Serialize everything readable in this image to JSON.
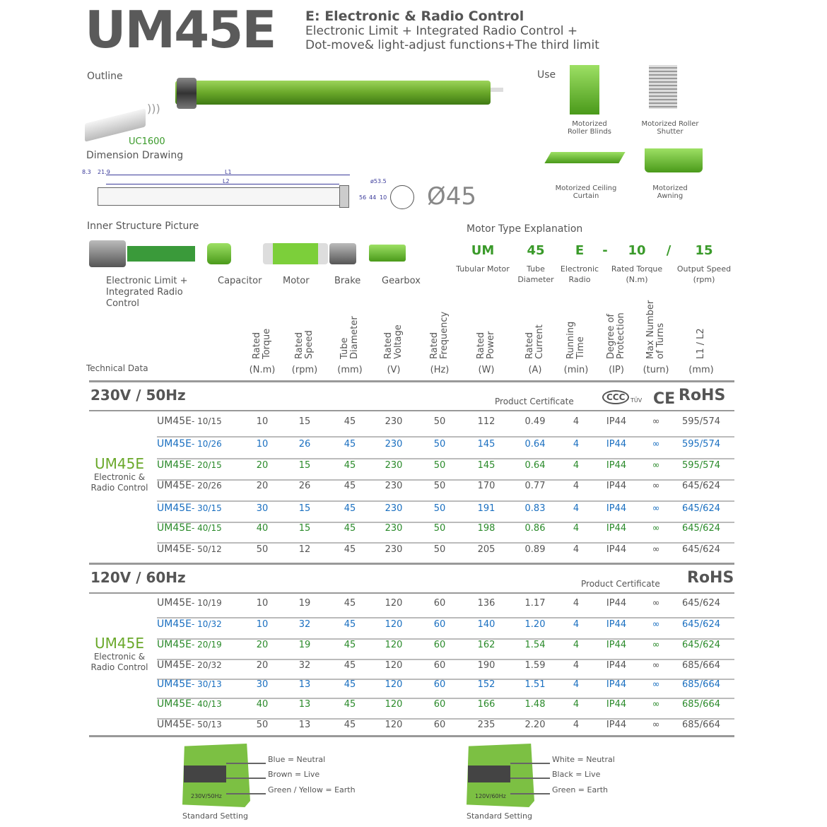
{
  "title": "UM45E",
  "subtitle": {
    "line1": "E: Electronic & Radio Control",
    "line2": "Electronic Limit + Integrated Radio Control +",
    "line3": "Dot-move& light-adjust functions+The third limit"
  },
  "outline": {
    "label": "Outline",
    "remote": "UC1600"
  },
  "use": {
    "label": "Use",
    "items": [
      "Motorized Roller Blinds",
      "Motorized Roller Shutter",
      "Motorized Ceiling Curtain",
      "Motorized Awning"
    ]
  },
  "dimension": {
    "label": "Dimension Drawing",
    "d1": "8.3",
    "d2": "21.9",
    "l1": "L1",
    "l2": "L2",
    "phi535": "ø53.5",
    "d56": "56",
    "d44": "44",
    "d10": "10",
    "diameter": "Ø45"
  },
  "inner": {
    "label": "Inner Structure Picture",
    "parts": [
      "Electronic Limit + Integrated Radio Control",
      "Capacitor",
      "Motor",
      "Brake",
      "Gearbox"
    ]
  },
  "motor_type": {
    "label": "Motor Type Explanation",
    "codes": [
      {
        "code": "UM",
        "desc": "Tubular Motor"
      },
      {
        "code": "45",
        "desc": "Tube Diameter"
      },
      {
        "code": "E",
        "desc": "Electronic Radio"
      },
      {
        "code": "-",
        "desc": ""
      },
      {
        "code": "10",
        "desc": "Rated Torque (N.m)"
      },
      {
        "code": "/",
        "desc": ""
      },
      {
        "code": "15",
        "desc": "Output Speed (rpm)"
      }
    ]
  },
  "tech": {
    "label": "Technical Data",
    "columns": [
      {
        "name": "Rated Torque",
        "unit": "(N.m)"
      },
      {
        "name": "Rated Speed",
        "unit": "(rpm)"
      },
      {
        "name": "Tube Diameter",
        "unit": "(mm)"
      },
      {
        "name": "Rated Voltage",
        "unit": "(V)"
      },
      {
        "name": "Rated Frequency",
        "unit": "(Hz)"
      },
      {
        "name": "Rated Power",
        "unit": "(W)"
      },
      {
        "name": "Rated Current",
        "unit": "(A)"
      },
      {
        "name": "Running Time",
        "unit": "(min)"
      },
      {
        "name": "Degree of Protection",
        "unit": "(IP)"
      },
      {
        "name": "Max Number of Turns",
        "unit": "(turn)"
      },
      {
        "name": "L1 / L2",
        "unit": "(mm)"
      }
    ]
  },
  "colors": {
    "grey": "#555555",
    "blue": "#1a6fc0",
    "green": "#2a8a2a",
    "accent": "#6aa82a"
  },
  "sections": [
    {
      "title": "230V / 50Hz",
      "cert_label": "Product Certificate",
      "certs": [
        "CCC",
        "TÜV",
        "CE",
        "RoHS"
      ],
      "group": "UM45E",
      "group_label": "Electronic & Radio Control",
      "rows": [
        {
          "model": "UM45E",
          "suffix": "- 10/15",
          "color": "grey",
          "v": [
            "10",
            "15",
            "45",
            "230",
            "50",
            "112",
            "0.49",
            "4",
            "IP44",
            "∞",
            "595/574"
          ]
        },
        {
          "model": "UM45E",
          "suffix": "- 10/26",
          "color": "blue",
          "v": [
            "10",
            "26",
            "45",
            "230",
            "50",
            "145",
            "0.64",
            "4",
            "IP44",
            "∞",
            "595/574"
          ]
        },
        {
          "model": "UM45E",
          "suffix": "- 20/15",
          "color": "green",
          "v": [
            "20",
            "15",
            "45",
            "230",
            "50",
            "145",
            "0.64",
            "4",
            "IP44",
            "∞",
            "595/574"
          ]
        },
        {
          "model": "UM45E",
          "suffix": "- 20/26",
          "color": "grey",
          "v": [
            "20",
            "26",
            "45",
            "230",
            "50",
            "170",
            "0.77",
            "4",
            "IP44",
            "∞",
            "645/624"
          ]
        },
        {
          "model": "UM45E",
          "suffix": "- 30/15",
          "color": "blue",
          "v": [
            "30",
            "15",
            "45",
            "230",
            "50",
            "191",
            "0.83",
            "4",
            "IP44",
            "∞",
            "645/624"
          ]
        },
        {
          "model": "UM45E",
          "suffix": "- 40/15",
          "color": "green",
          "v": [
            "40",
            "15",
            "45",
            "230",
            "50",
            "198",
            "0.86",
            "4",
            "IP44",
            "∞",
            "645/624"
          ]
        },
        {
          "model": "UM45E",
          "suffix": "- 50/12",
          "color": "grey",
          "v": [
            "50",
            "12",
            "45",
            "230",
            "50",
            "205",
            "0.89",
            "4",
            "IP44",
            "∞",
            "645/624"
          ]
        }
      ]
    },
    {
      "title": "120V / 60Hz",
      "cert_label": "Product Certificate",
      "certs": [
        "RoHS"
      ],
      "group": "UM45E",
      "group_label": "Electronic & Radio Control",
      "rows": [
        {
          "model": "UM45E",
          "suffix": "- 10/19",
          "color": "grey",
          "v": [
            "10",
            "19",
            "45",
            "120",
            "60",
            "136",
            "1.17",
            "4",
            "IP44",
            "∞",
            "645/624"
          ]
        },
        {
          "model": "UM45E",
          "suffix": "- 10/32",
          "color": "blue",
          "v": [
            "10",
            "32",
            "45",
            "120",
            "60",
            "140",
            "1.20",
            "4",
            "IP44",
            "∞",
            "645/624"
          ]
        },
        {
          "model": "UM45E",
          "suffix": "- 20/19",
          "color": "green",
          "v": [
            "20",
            "19",
            "45",
            "120",
            "60",
            "162",
            "1.54",
            "4",
            "IP44",
            "∞",
            "645/624"
          ]
        },
        {
          "model": "UM45E",
          "suffix": "- 20/32",
          "color": "grey",
          "v": [
            "20",
            "32",
            "45",
            "120",
            "60",
            "190",
            "1.59",
            "4",
            "IP44",
            "∞",
            "685/664"
          ]
        },
        {
          "model": "UM45E",
          "suffix": "- 30/13",
          "color": "blue",
          "v": [
            "30",
            "13",
            "45",
            "120",
            "60",
            "152",
            "1.51",
            "4",
            "IP44",
            "∞",
            "685/664"
          ]
        },
        {
          "model": "UM45E",
          "suffix": "- 40/13",
          "color": "green",
          "v": [
            "40",
            "13",
            "45",
            "120",
            "60",
            "166",
            "1.48",
            "4",
            "IP44",
            "∞",
            "685/664"
          ]
        },
        {
          "model": "UM45E",
          "suffix": "- 50/13",
          "color": "grey",
          "v": [
            "50",
            "13",
            "45",
            "120",
            "60",
            "235",
            "2.20",
            "4",
            "IP44",
            "∞",
            "685/664"
          ]
        }
      ]
    }
  ],
  "wiring": [
    {
      "plate": "230V/50Hz",
      "lines": [
        "Blue = Neutral",
        "Brown = Live",
        "Green / Yellow = Earth"
      ],
      "caption": "Standard Setting"
    },
    {
      "plate": "120V/60Hz",
      "lines": [
        "White = Neutral",
        "Black = Live",
        "Green = Earth"
      ],
      "caption": "Standard Setting"
    }
  ]
}
